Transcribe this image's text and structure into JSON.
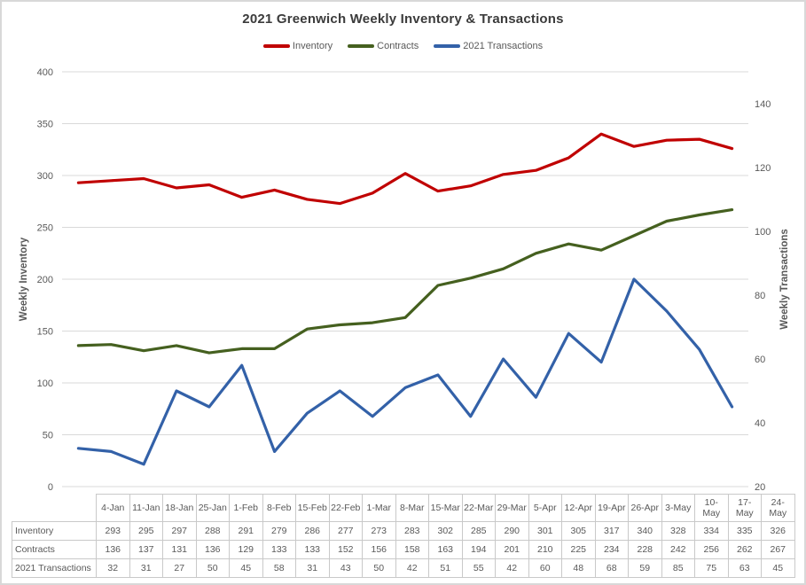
{
  "title": "2021 Greenwich Weekly Inventory & Transactions",
  "colors": {
    "inventory": "#c00000",
    "contracts": "#45601f",
    "transactions": "#3361a8",
    "grid": "#d9d9d9",
    "axis_text": "#595959",
    "title_text": "#3b3b3b",
    "table_border": "#c9c9c9",
    "table_text": "#595959"
  },
  "legend": [
    {
      "label": "Inventory"
    },
    {
      "label": "Contracts"
    },
    {
      "label": "2021 Transactions"
    }
  ],
  "left_axis": {
    "title": "Weekly Inventory",
    "ticks": [
      400,
      350,
      300,
      250,
      200,
      150,
      100,
      50,
      0
    ]
  },
  "right_axis": {
    "title": "Weekly Transactions",
    "ticks": [
      140,
      120,
      100,
      80,
      60,
      40,
      20
    ]
  },
  "chart_data": {
    "type": "line",
    "title": "2021 Greenwich Weekly Inventory & Transactions",
    "categories": [
      "4-Jan",
      "11-Jan",
      "18-Jan",
      "25-Jan",
      "1-Feb",
      "8-Feb",
      "15-Feb",
      "22-Feb",
      "1-Mar",
      "8-Mar",
      "15-Mar",
      "22-Mar",
      "29-Mar",
      "5-Apr",
      "12-Apr",
      "19-Apr",
      "26-Apr",
      "3-May",
      "10-May",
      "17-May",
      "24-May"
    ],
    "series": [
      {
        "key": "inventory",
        "name": "Inventory",
        "axis": "left",
        "color": "#c00000",
        "values": [
          293,
          295,
          297,
          288,
          291,
          279,
          286,
          277,
          273,
          283,
          302,
          285,
          290,
          301,
          305,
          317,
          340,
          328,
          334,
          335,
          326
        ]
      },
      {
        "key": "contracts",
        "name": "Contracts",
        "axis": "left",
        "color": "#45601f",
        "values": [
          136,
          137,
          131,
          136,
          129,
          133,
          133,
          152,
          156,
          158,
          163,
          194,
          201,
          210,
          225,
          234,
          228,
          242,
          256,
          262,
          267
        ]
      },
      {
        "key": "transactions",
        "name": "2021 Transactions",
        "axis": "right",
        "color": "#3361a8",
        "values": [
          32,
          31,
          27,
          50,
          45,
          58,
          31,
          43,
          50,
          42,
          51,
          55,
          42,
          60,
          48,
          68,
          59,
          85,
          75,
          63,
          45
        ]
      }
    ],
    "left_ylabel": "Weekly Inventory",
    "right_ylabel": "Weekly Transactions",
    "left_ylim": [
      0,
      400
    ],
    "right_ylim": [
      20,
      150
    ],
    "grid": true,
    "legend_position": "top"
  }
}
